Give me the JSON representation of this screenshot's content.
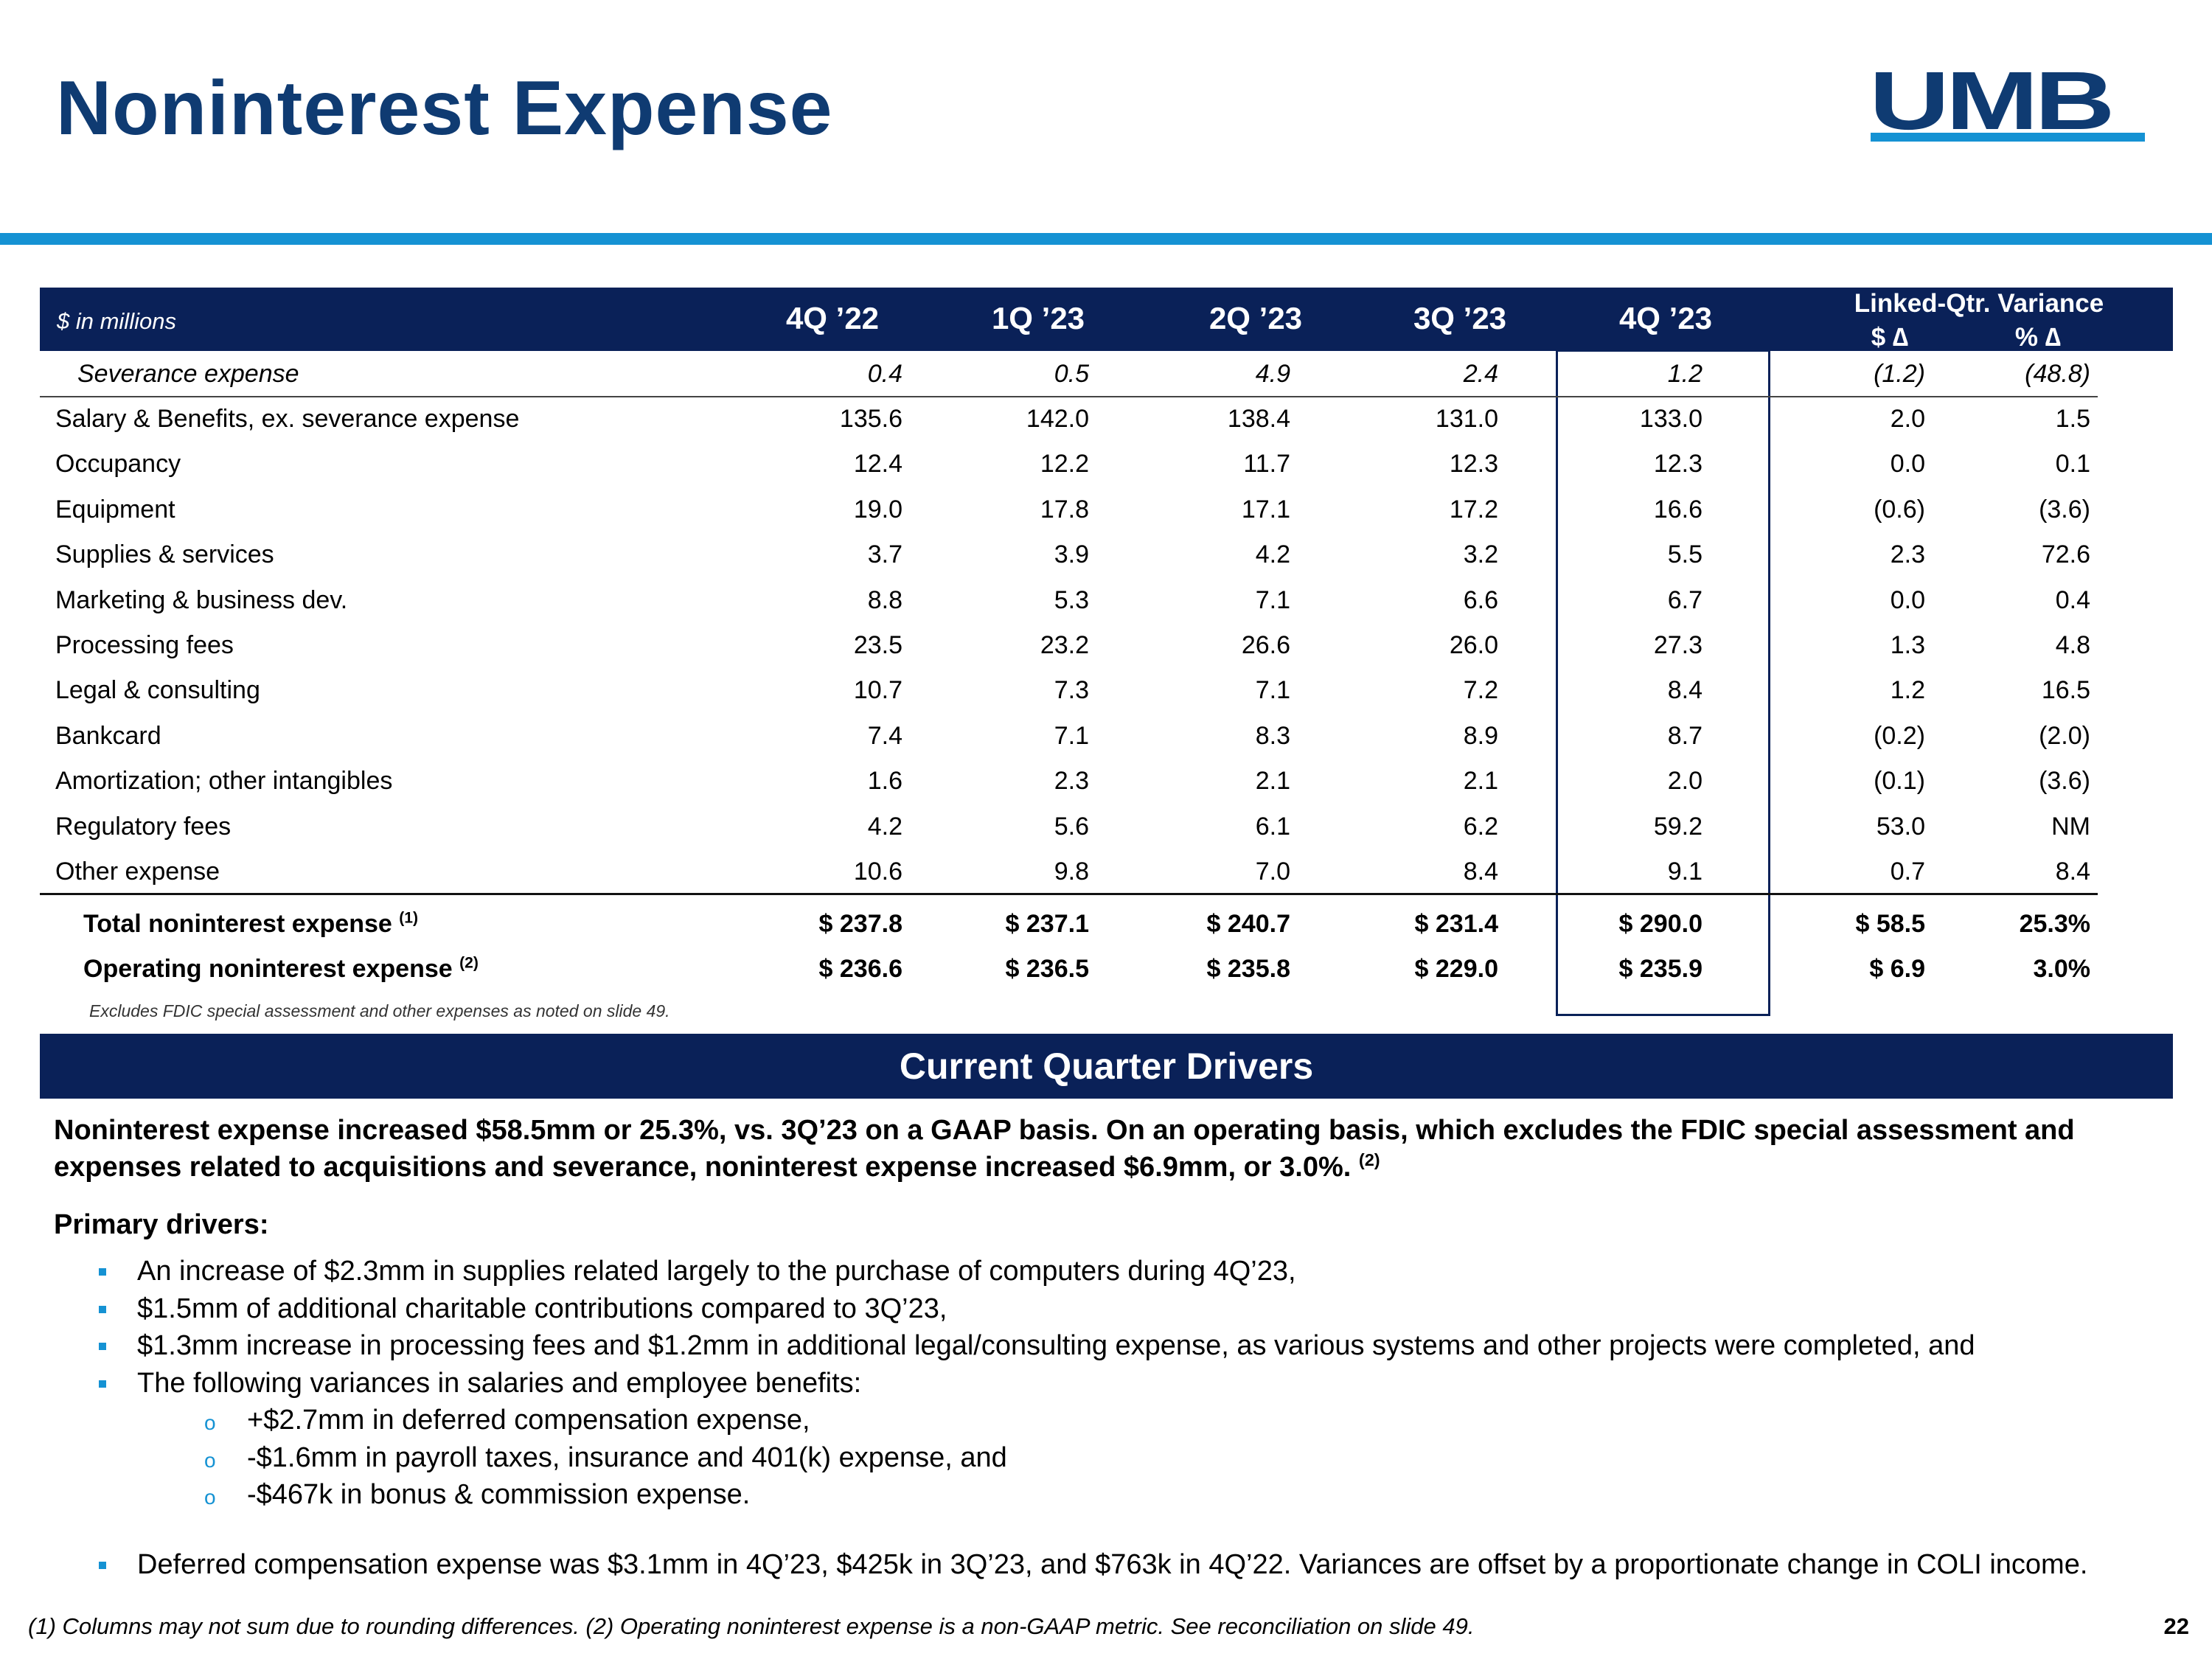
{
  "header": {
    "title": "Noninterest Expense",
    "logo": "UMB"
  },
  "table": {
    "unit_label": "$ in millions",
    "columns": [
      "4Q ’22",
      "1Q ’23",
      "2Q ’23",
      "3Q ’23",
      "4Q ’23"
    ],
    "variance_header": "Linked-Qtr. Variance",
    "variance_columns": [
      "$ ∆",
      "% ∆"
    ],
    "memo_row": {
      "label": "Severance expense",
      "cells": [
        "0.4",
        "0.5",
        "4.9",
        "2.4",
        "1.2",
        "(1.2)",
        "(48.8)"
      ]
    },
    "rows": [
      {
        "label": "Salary & Benefits, ex. severance expense",
        "cells": [
          "135.6",
          "142.0",
          "138.4",
          "131.0",
          "133.0",
          "2.0",
          "1.5"
        ]
      },
      {
        "label": "Occupancy",
        "cells": [
          "12.4",
          "12.2",
          "11.7",
          "12.3",
          "12.3",
          "0.0",
          "0.1"
        ]
      },
      {
        "label": "Equipment",
        "cells": [
          "19.0",
          "17.8",
          "17.1",
          "17.2",
          "16.6",
          "(0.6)",
          "(3.6)"
        ]
      },
      {
        "label": "Supplies & services",
        "cells": [
          "3.7",
          "3.9",
          "4.2",
          "3.2",
          "5.5",
          "2.3",
          "72.6"
        ]
      },
      {
        "label": "Marketing & business dev.",
        "cells": [
          "8.8",
          "5.3",
          "7.1",
          "6.6",
          "6.7",
          "0.0",
          "0.4"
        ]
      },
      {
        "label": "Processing fees",
        "cells": [
          "23.5",
          "23.2",
          "26.6",
          "26.0",
          "27.3",
          "1.3",
          "4.8"
        ]
      },
      {
        "label": "Legal & consulting",
        "cells": [
          "10.7",
          "7.3",
          "7.1",
          "7.2",
          "8.4",
          "1.2",
          "16.5"
        ]
      },
      {
        "label": "Bankcard",
        "cells": [
          "7.4",
          "7.1",
          "8.3",
          "8.9",
          "8.7",
          "(0.2)",
          "(2.0)"
        ]
      },
      {
        "label": "Amortization; other intangibles",
        "cells": [
          "1.6",
          "2.3",
          "2.1",
          "2.1",
          "2.0",
          "(0.1)",
          "(3.6)"
        ]
      },
      {
        "label": "Regulatory fees",
        "cells": [
          "4.2",
          "5.6",
          "6.1",
          "6.2",
          "59.2",
          "53.0",
          "NM"
        ]
      },
      {
        "label": "Other expense",
        "cells": [
          "10.6",
          "9.8",
          "7.0",
          "8.4",
          "9.1",
          "0.7",
          "8.4"
        ]
      }
    ],
    "total_rows": [
      {
        "label": "Total noninterest expense",
        "note": "(1)",
        "cells": [
          "$ 237.8",
          "$ 237.1",
          "$ 240.7",
          "$ 231.4",
          "$ 290.0",
          "$ 58.5",
          "25.3%"
        ]
      },
      {
        "label": "Operating noninterest expense",
        "note": "(2)",
        "cells": [
          "$ 236.6",
          "$ 236.5",
          "$ 235.8",
          "$ 229.0",
          "$ 235.9",
          "$ 6.9",
          "3.0%"
        ]
      }
    ],
    "footnote": "Excludes FDIC special assessment and other expenses as noted on slide 49."
  },
  "drivers": {
    "heading": "Current Quarter Drivers",
    "summary": {
      "text": "Noninterest expense increased $58.5mm or 25.3%, vs. 3Q’23 on a GAAP basis. On an operating basis, which excludes the FDIC special assessment and expenses related to acquisitions and severance, noninterest expense increased $6.9mm, or 3.0%.",
      "note": "(2)"
    },
    "primary_label": "Primary drivers:",
    "bullets": [
      {
        "text": "An increase of $2.3mm in supplies related largely to the purchase of computers during 4Q’23,"
      },
      {
        "text": "$1.5mm of additional charitable contributions compared to 3Q’23,"
      },
      {
        "text": "$1.3mm increase in processing fees and $1.2mm in additional legal/consulting expense, as various systems and other projects were completed, and"
      },
      {
        "text": "The following variances in salaries and employee benefits:",
        "items": [
          "+$2.7mm in deferred compensation expense,",
          "-$1.6mm in payroll taxes, insurance and 401(k) expense, and",
          "-$467k in bonus & commission expense."
        ]
      },
      {
        "text": "Deferred compensation expense was $3.1mm in 4Q’23, $425k in 3Q’23, and $763k in 4Q’22. Variances are offset by a proportionate change in COLI income."
      }
    ]
  },
  "footer": {
    "note": "(1) Columns may not sum due to rounding differences. (2) Operating noninterest expense is a non-GAAP metric. See reconciliation on slide 49.",
    "page": "22"
  }
}
